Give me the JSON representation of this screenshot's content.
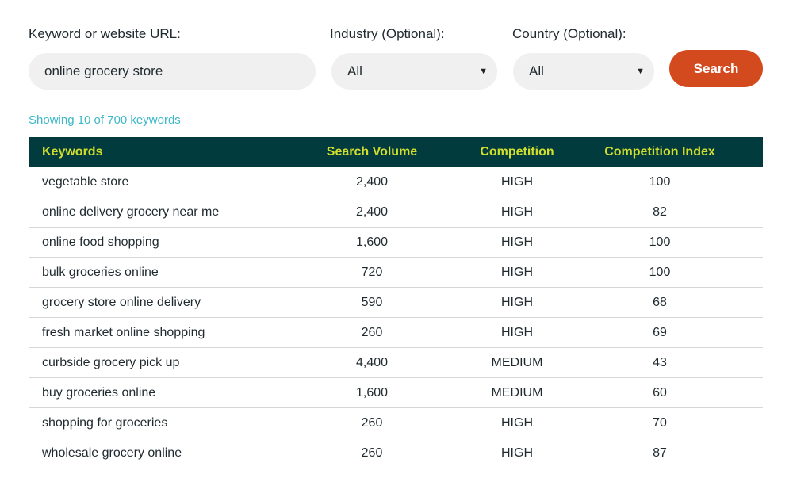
{
  "form": {
    "keyword_label": "Keyword or website URL:",
    "keyword_value": "online grocery store",
    "industry_label": "Industry (Optional):",
    "industry_value": "All",
    "country_label": "Country (Optional):",
    "country_value": "All",
    "search_label": "Search",
    "caret_glyph": "▼"
  },
  "status_text": "Showing 10 of 700 keywords",
  "table": {
    "headers": [
      "Keywords",
      "Search Volume",
      "Competition",
      "Competition Index"
    ],
    "rows": [
      [
        "vegetable store",
        "2,400",
        "HIGH",
        "100"
      ],
      [
        "online delivery grocery near me",
        "2,400",
        "HIGH",
        "82"
      ],
      [
        "online food shopping",
        "1,600",
        "HIGH",
        "100"
      ],
      [
        "bulk groceries online",
        "720",
        "HIGH",
        "100"
      ],
      [
        "grocery store online delivery",
        "590",
        "HIGH",
        "68"
      ],
      [
        "fresh market online shopping",
        "260",
        "HIGH",
        "69"
      ],
      [
        "curbside grocery pick up",
        "4,400",
        "MEDIUM",
        "43"
      ],
      [
        "buy groceries online",
        "1,600",
        "MEDIUM",
        "60"
      ],
      [
        "shopping for groceries",
        "260",
        "HIGH",
        "70"
      ],
      [
        "wholesale grocery online",
        "260",
        "HIGH",
        "87"
      ]
    ]
  },
  "colors": {
    "header_bg": "#023b3e",
    "header_text": "#d2de2c",
    "button_bg": "#d24a1e",
    "status_text": "#3db8c8",
    "field_bg": "#f0f0f0"
  }
}
